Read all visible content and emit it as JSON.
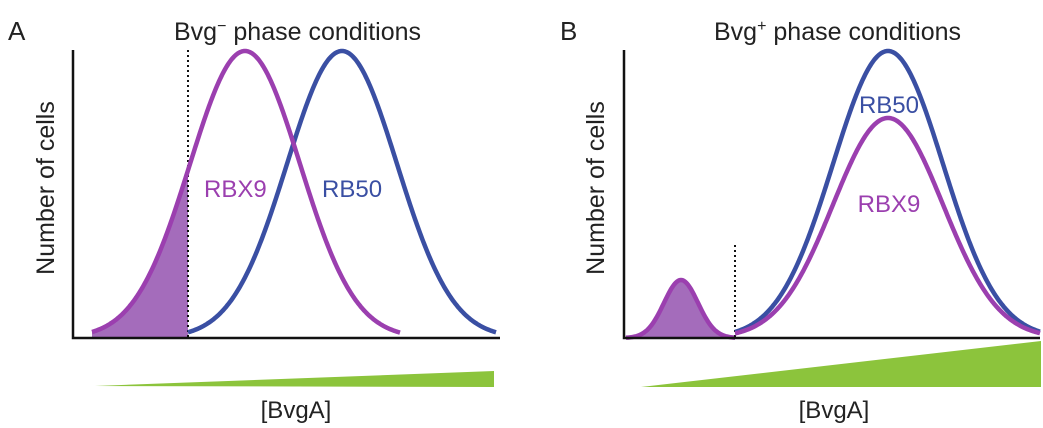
{
  "colors": {
    "rbx9": "#9b3faf",
    "rb50": "#3a4fa3",
    "fill": "#a46cbb",
    "gradient": "#8cc43c",
    "axis": "#111111"
  },
  "panel_a": {
    "letter": "A",
    "title_pre": "Bvg",
    "title_sup": "−",
    "title_post": " phase conditions",
    "ylabel": "Number of cells",
    "xlabel": "[BvgA]",
    "label_rbx9": "RBX9",
    "label_rb50": "RB50"
  },
  "panel_b": {
    "letter": "B",
    "title_pre": "Bvg",
    "title_sup": "+",
    "title_post": " phase conditions",
    "ylabel": "Number of cells",
    "xlabel": "[BvgA]",
    "label_rbx9": "RBX9",
    "label_rb50": "RB50"
  }
}
